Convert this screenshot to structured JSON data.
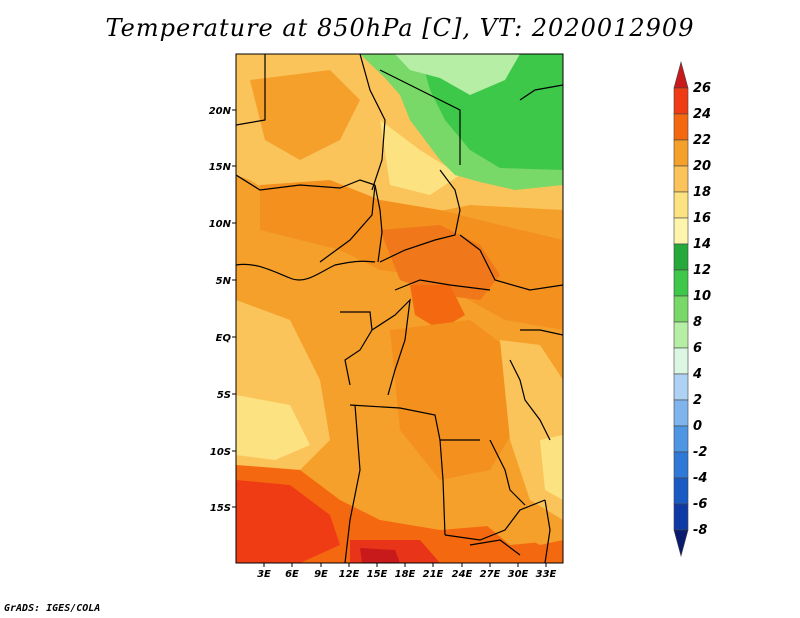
{
  "title": "Temperature at 850hPa [C], VT: 2020012909",
  "credit": "GrADS: IGES/COLA",
  "lat_labels": [
    "20N",
    "15N",
    "10N",
    "5N",
    "EQ",
    "5S",
    "10S",
    "15S"
  ],
  "lon_labels": [
    "3E",
    "6E",
    "9E",
    "12E",
    "15E",
    "18E",
    "21E",
    "24E",
    "27E",
    "30E",
    "33E"
  ],
  "colorbar": {
    "labels": [
      "26",
      "24",
      "22",
      "20",
      "18",
      "16",
      "14",
      "12",
      "10",
      "8",
      "6",
      "4",
      "2",
      "0",
      "-2",
      "-4",
      "-6",
      "-8"
    ],
    "colors": [
      "#c8191b",
      "#f03c14",
      "#f4690f",
      "#f5a02a",
      "#fbc45a",
      "#fde282",
      "#fef5ac",
      "#26a83a",
      "#3ec84a",
      "#78d868",
      "#b6eea6",
      "#dcf6e4",
      "#aed2f4",
      "#80b4ec",
      "#4e96e4",
      "#2e78d8",
      "#1a5ac4",
      "#0f3aa6",
      "#0a1a6e"
    ]
  }
}
